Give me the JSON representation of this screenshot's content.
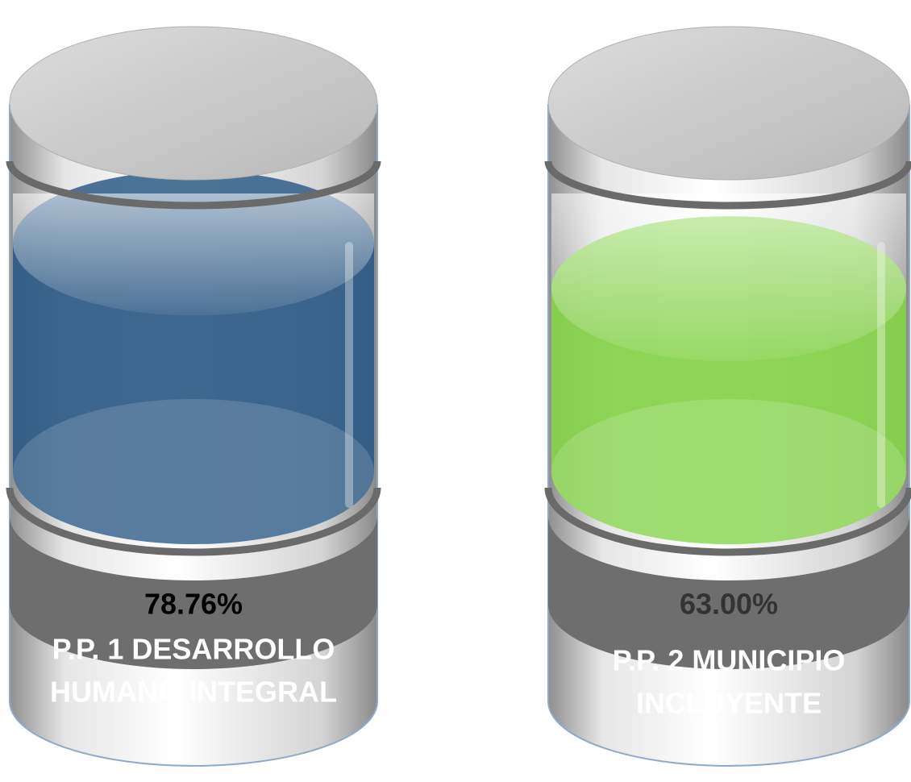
{
  "chart_data": {
    "type": "cylinder",
    "categories": [
      [
        "P.P. 1 DESARROLLO",
        "HUMANO INTEGRAL"
      ],
      [
        "P.P. 2 MUNICIPIO",
        "INCLUYENTE"
      ]
    ],
    "values": [
      78.76,
      63.0
    ],
    "value_labels": [
      "78.76%",
      "63.00%"
    ],
    "colors": [
      "#2d5a86",
      "#86d24a"
    ]
  }
}
